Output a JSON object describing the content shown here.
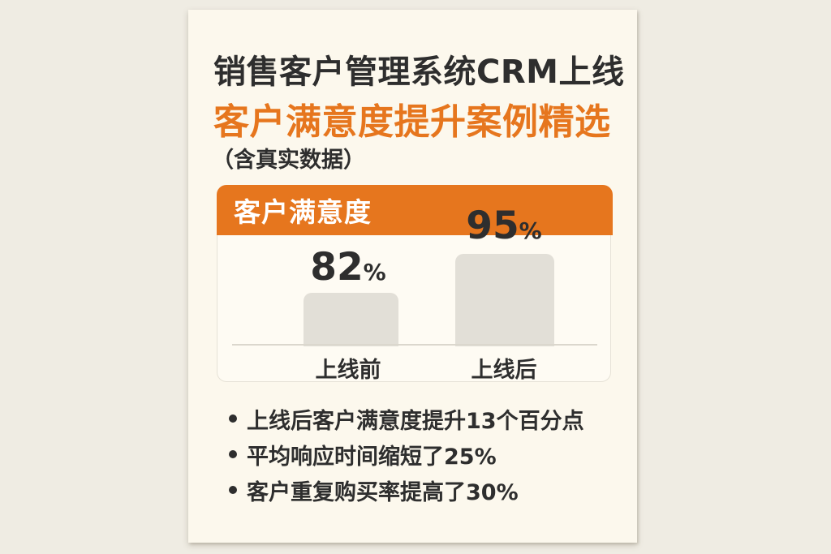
{
  "page": {
    "background_color": "#EFECE3",
    "card_background_color": "#FCF8ED"
  },
  "colors": {
    "accent_orange": "#E6761E",
    "text_dark": "#2E2E2E",
    "bar_fill": "#E2DFD7",
    "panel_background": "#FEFBF3",
    "baseline_gray": "#DBD7CD"
  },
  "header": {
    "title": "销售客户管理系统CRM上线",
    "subtitle": "客户满意度提升案例精选",
    "note": "（含真实数据）"
  },
  "chart": {
    "panel_title": "客户满意度",
    "bars": [
      {
        "label": "上线前",
        "value": "82",
        "unit": "%"
      },
      {
        "label": "上线后",
        "value": "95",
        "unit": "%"
      }
    ]
  },
  "chart_data": {
    "type": "bar",
    "title": "客户满意度",
    "categories": [
      "上线前",
      "上线后"
    ],
    "values": [
      82,
      95
    ],
    "unit": "%",
    "ylim": [
      0,
      100
    ],
    "grid": false,
    "legend": false,
    "data_labels": [
      "82%",
      "95%"
    ]
  },
  "bullets": [
    {
      "text": "上线后客户满意度提升13个百分点"
    },
    {
      "text": "平均响应时间缩短了25%"
    },
    {
      "text": "客户重复购买率提高了30%"
    }
  ]
}
